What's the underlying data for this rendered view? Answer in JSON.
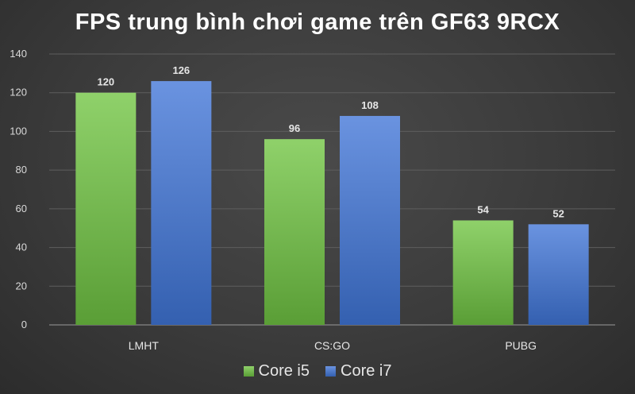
{
  "chart_data": {
    "type": "bar",
    "title": "FPS trung bình chơi game trên GF63 9RCX",
    "categories": [
      "LMHT",
      "CS:GO",
      "PUBG"
    ],
    "series": [
      {
        "name": "Core i5",
        "values": [
          120,
          96,
          54
        ],
        "color": "#6fb44a"
      },
      {
        "name": "Core i7",
        "values": [
          126,
          108,
          52
        ],
        "color": "#4472c4"
      }
    ],
    "ylim": [
      0,
      140
    ],
    "yticks": [
      0,
      20,
      40,
      60,
      80,
      100,
      120,
      140
    ],
    "grid": true,
    "legend": "bottom",
    "xlabel": "",
    "ylabel": ""
  }
}
